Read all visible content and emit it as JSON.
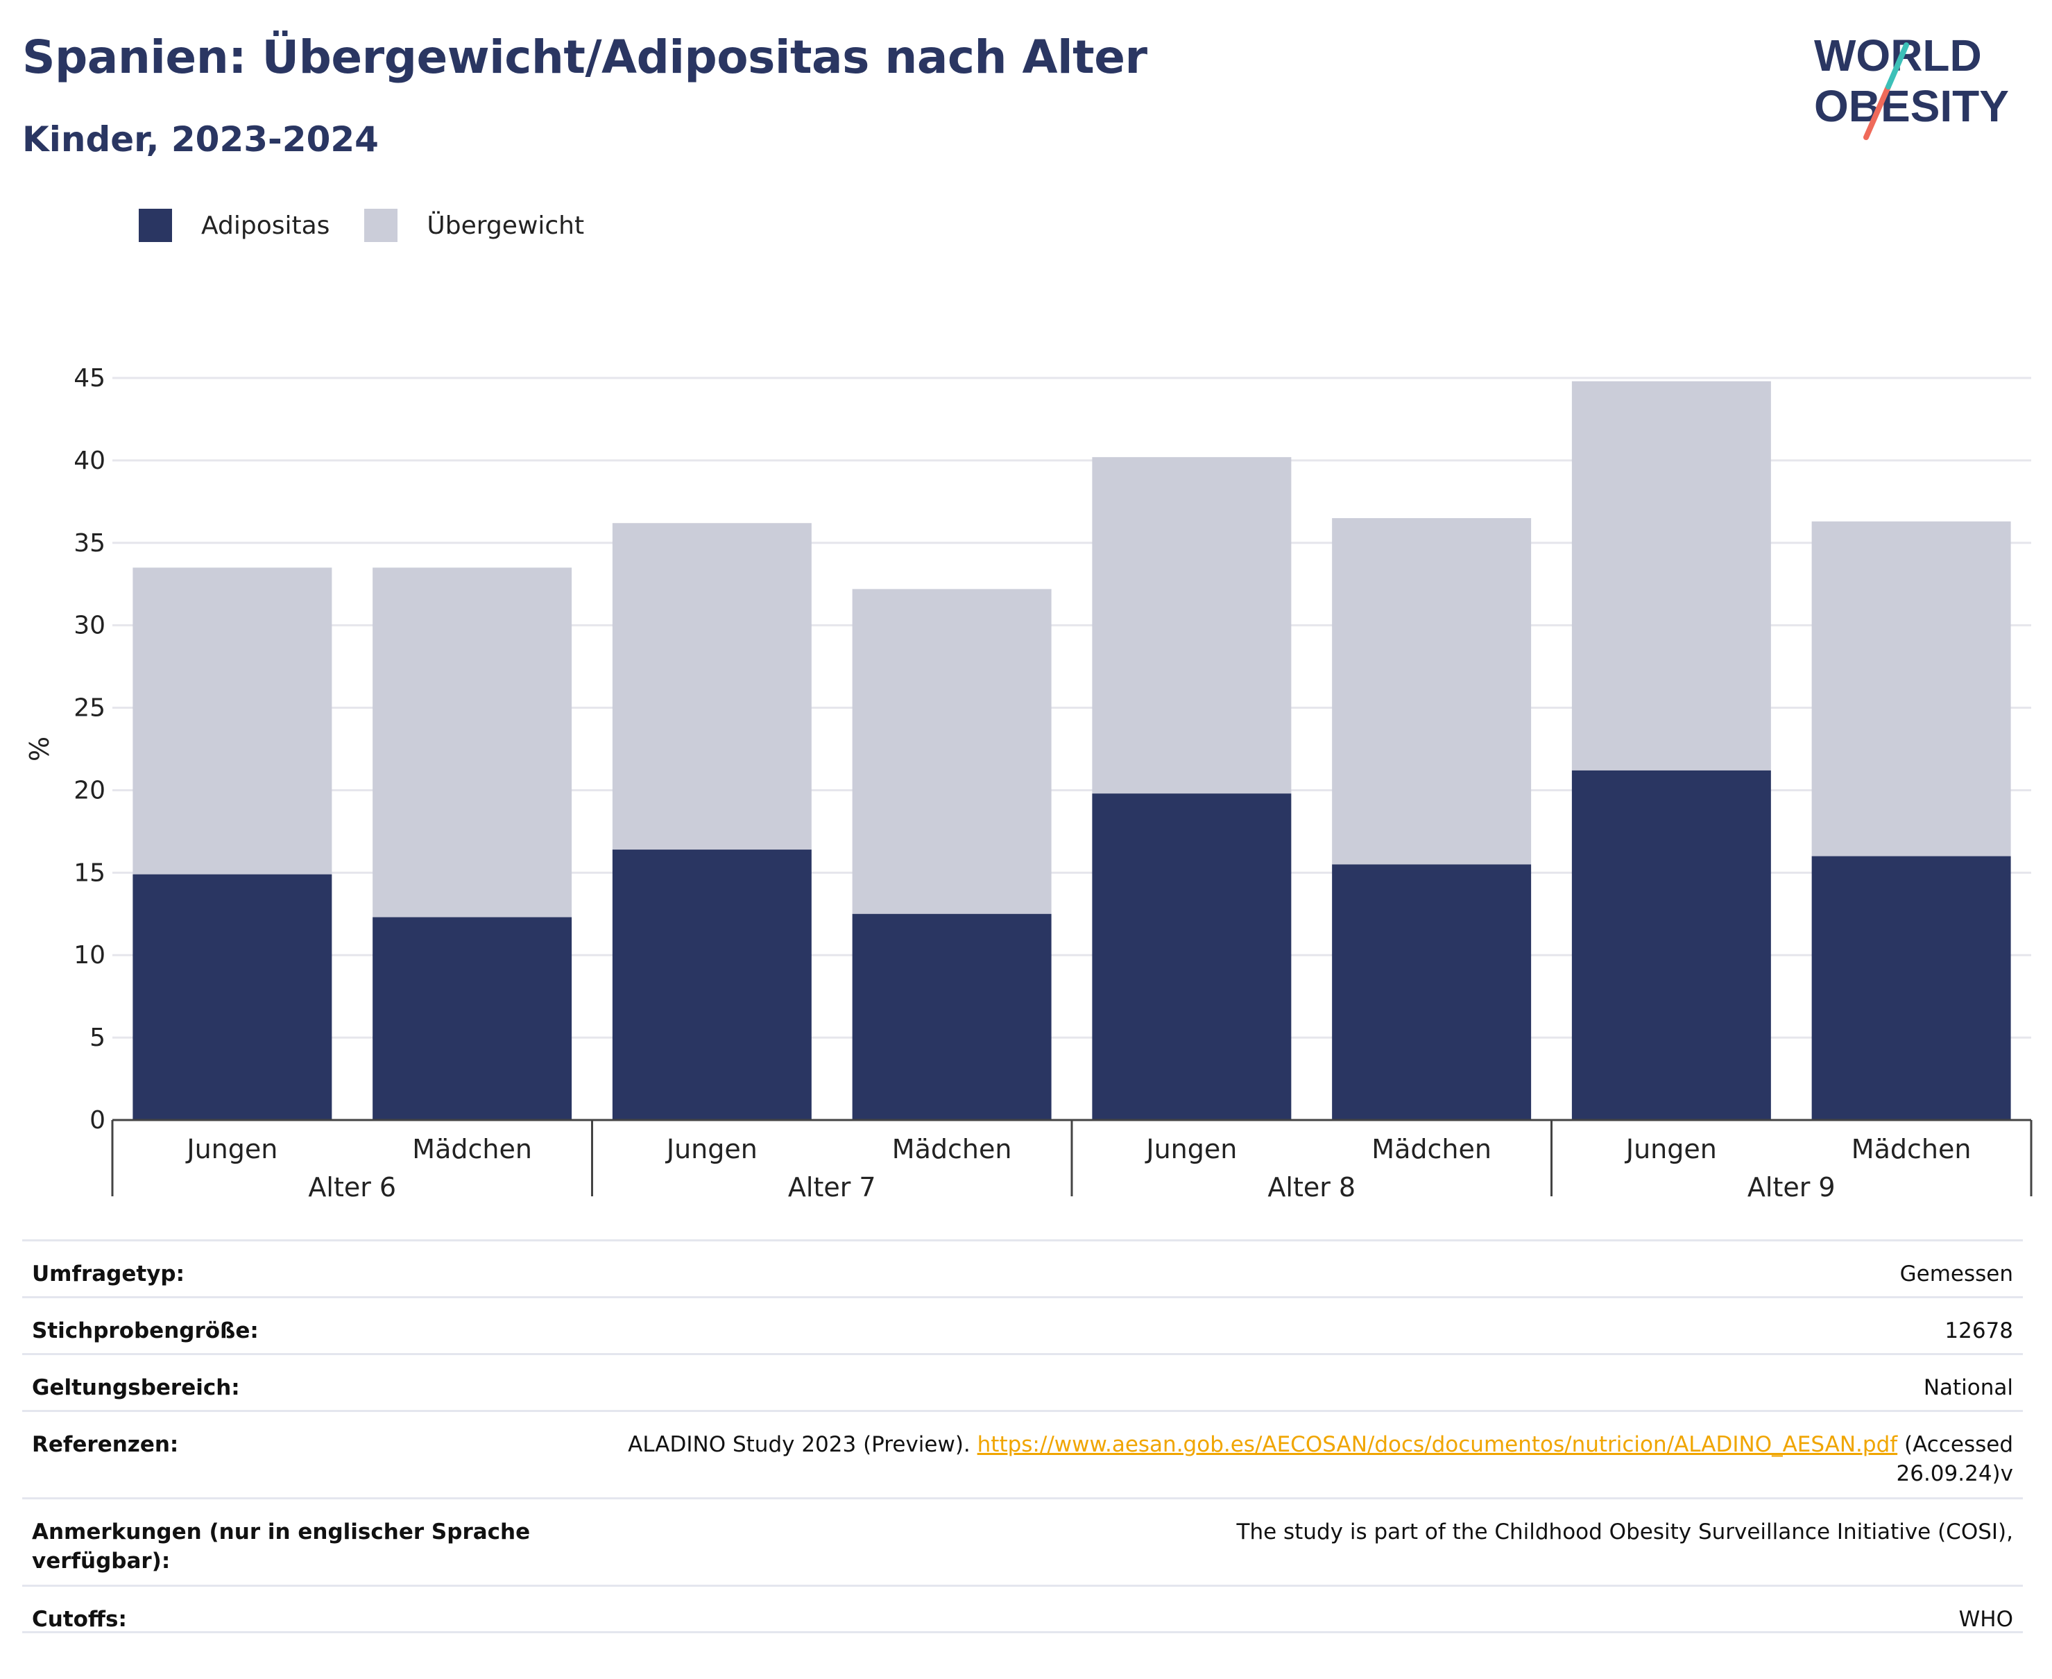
{
  "header": {
    "title": "Spanien: Übergewicht/Adipositas nach Alter",
    "subtitle": "Kinder, 2023-2024",
    "logo_line1": "WORLD",
    "logo_line2": "OBESITY"
  },
  "colors": {
    "adipositas": "#2a3662",
    "uebergewicht": "#cbcdd9",
    "title": "#2a3662",
    "link": "#f0a500",
    "logo_teal": "#3cc0b8",
    "logo_coral": "#ef6a5a"
  },
  "legend": {
    "items": [
      {
        "label": "Adipositas",
        "color": "#2a3662"
      },
      {
        "label": "Übergewicht",
        "color": "#cbcdd9"
      }
    ]
  },
  "chart_data": {
    "type": "bar",
    "stacked": true,
    "ylabel": "%",
    "ylim": [
      0,
      45
    ],
    "yticks": [
      0,
      5,
      10,
      15,
      20,
      25,
      30,
      35,
      40,
      45
    ],
    "grid": true,
    "legend_position": "top-left",
    "groups": [
      "Alter 6",
      "Alter 7",
      "Alter 8",
      "Alter 9"
    ],
    "categories": [
      "Jungen",
      "Mädchen",
      "Jungen",
      "Mädchen",
      "Jungen",
      "Mädchen",
      "Jungen",
      "Mädchen"
    ],
    "series": [
      {
        "name": "Adipositas",
        "values": [
          14.9,
          12.3,
          16.4,
          12.5,
          19.8,
          15.5,
          21.2,
          16.0
        ]
      },
      {
        "name": "Übergewicht",
        "values": [
          18.6,
          21.2,
          19.8,
          19.7,
          20.4,
          21.0,
          23.6,
          20.3
        ]
      }
    ],
    "totals": [
      33.5,
      33.5,
      36.2,
      32.2,
      40.2,
      36.5,
      44.8,
      36.3
    ]
  },
  "meta": {
    "rows": [
      {
        "key": "Umfragetyp:",
        "value": "Gemessen"
      },
      {
        "key": "Stichprobengröße:",
        "value": "12678"
      },
      {
        "key": "Geltungsbereich:",
        "value": "National"
      },
      {
        "key": "Referenzen:",
        "value_pre": "ALADINO Study 2023 (Preview).",
        "link": "https://www.aesan.gob.es/AECOSAN/docs/documentos/nutricion/ALADINO_AESAN.pdf",
        "value_post": "(Accessed 26.09.24)v"
      },
      {
        "key": "Anmerkungen (nur in englischer Sprache verfügbar):",
        "value": "The study is part of the Childhood Obesity Surveillance Initiative (COSI),"
      },
      {
        "key": "Cutoffs:",
        "value": "WHO"
      }
    ]
  }
}
